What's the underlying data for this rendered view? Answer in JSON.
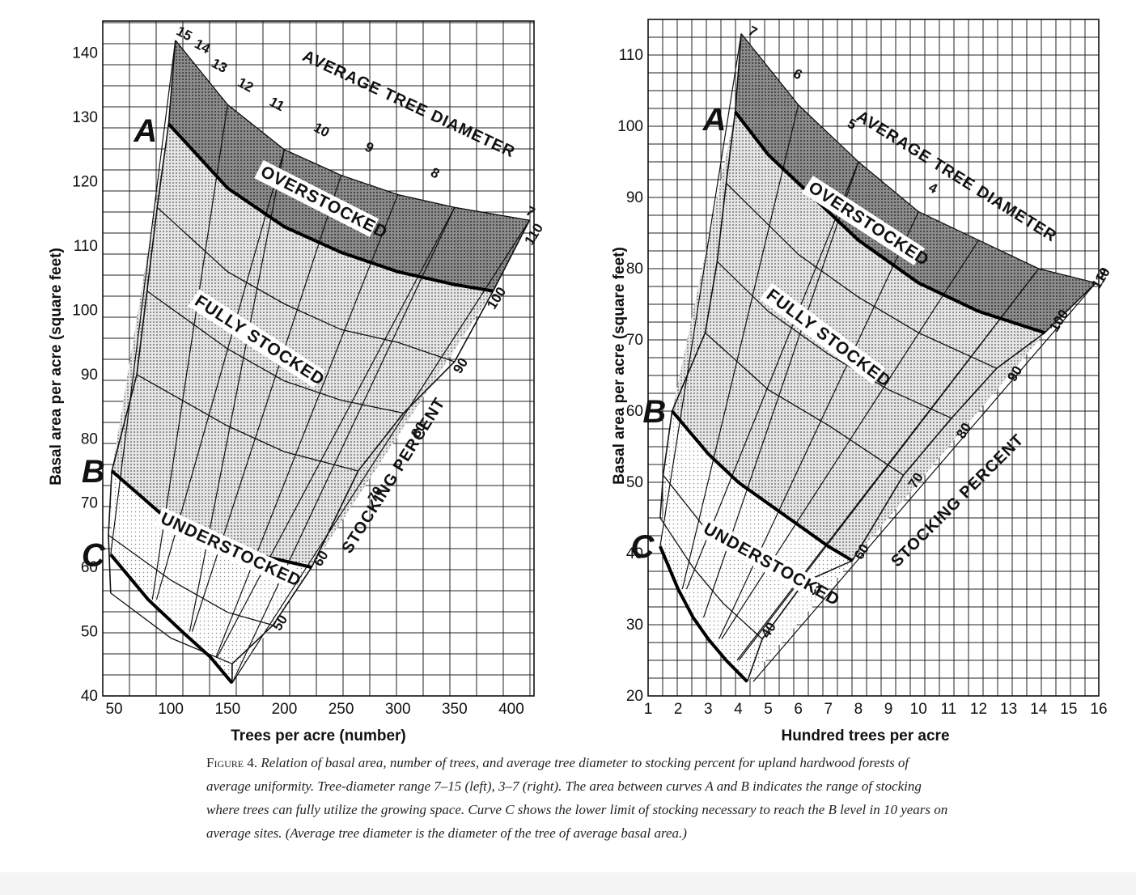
{
  "chart_data": [
    {
      "type": "line",
      "panel": "left",
      "xlabel": "Trees per acre (number)",
      "ylabel": "Basal area per acre (square feet)",
      "xlim": [
        40,
        420
      ],
      "ylim": [
        40,
        145
      ],
      "x_ticks": [
        50,
        100,
        150,
        200,
        250,
        300,
        350,
        400
      ],
      "y_ticks": [
        40,
        50,
        60,
        70,
        80,
        90,
        100,
        110,
        120,
        130,
        140
      ],
      "grid": true,
      "zones": [
        "OVERSTOCKED",
        "FULLY STOCKED",
        "UNDERSTOCKED"
      ],
      "diameter_title": "AVERAGE TREE DIAMETER",
      "stocking_title": "STOCKING PERCENT",
      "curves": [
        {
          "name": "A",
          "x": [
            98,
            150,
            200,
            250,
            300,
            350,
            384
          ],
          "y": [
            129,
            119,
            113,
            109,
            106,
            104,
            103
          ]
        },
        {
          "name": "B",
          "x": [
            48,
            100,
            150,
            200,
            224
          ],
          "y": [
            75,
            67,
            63,
            61,
            60
          ]
        },
        {
          "name": "C",
          "x": [
            47,
            80,
            110,
            135,
            154
          ],
          "y": [
            62,
            55,
            50,
            46,
            42
          ]
        }
      ],
      "stocking_lines": [
        {
          "label": "110",
          "x": [
            104,
            150,
            200,
            250,
            300,
            350,
            416
          ],
          "y": [
            142,
            132,
            125,
            121,
            118,
            116,
            114
          ]
        },
        {
          "label": "100",
          "x": [
            98,
            150,
            200,
            250,
            300,
            350,
            384
          ],
          "y": [
            129,
            119,
            113,
            109,
            106,
            104,
            103
          ]
        },
        {
          "label": "90",
          "x": [
            88,
            150,
            200,
            250,
            300,
            350
          ],
          "y": [
            116,
            106,
            101,
            97,
            95,
            92
          ]
        },
        {
          "label": "80",
          "x": [
            79,
            150,
            200,
            250,
            305
          ],
          "y": [
            103,
            94,
            89,
            86,
            84
          ]
        },
        {
          "label": "70",
          "x": [
            70,
            150,
            200,
            265
          ],
          "y": [
            90,
            82,
            78,
            75
          ]
        },
        {
          "label": "60",
          "x": [
            48,
            100,
            150,
            200,
            224
          ],
          "y": [
            75,
            67,
            63,
            61,
            60
          ]
        },
        {
          "label": "50",
          "x": [
            45,
            100,
            150,
            190
          ],
          "y": [
            65,
            58,
            53,
            51
          ]
        },
        {
          "label": "40",
          "x": [
            47,
            100,
            154
          ],
          "y": [
            56,
            49,
            45
          ]
        }
      ],
      "stocking_labels": [
        {
          "text": "110",
          "x": 418,
          "y": 110
        },
        {
          "text": "100",
          "x": 385,
          "y": 100
        },
        {
          "text": "90",
          "x": 355,
          "y": 90
        },
        {
          "text": "80",
          "x": 318,
          "y": 80
        },
        {
          "text": "70",
          "x": 280,
          "y": 70
        },
        {
          "text": "60",
          "x": 232,
          "y": 60
        },
        {
          "text": "50",
          "x": 196,
          "y": 50
        }
      ],
      "diameter_labels": [
        {
          "text": "15",
          "x": 104,
          "y": 143
        },
        {
          "text": "14",
          "x": 120,
          "y": 141
        },
        {
          "text": "13",
          "x": 135,
          "y": 138
        },
        {
          "text": "12",
          "x": 158,
          "y": 135
        },
        {
          "text": "11",
          "x": 186,
          "y": 132
        },
        {
          "text": "10",
          "x": 225,
          "y": 128
        },
        {
          "text": "9",
          "x": 270,
          "y": 125
        },
        {
          "text": "8",
          "x": 328,
          "y": 121
        },
        {
          "text": "7",
          "x": 412,
          "y": 115
        }
      ],
      "curve_labels": [
        {
          "text": "A",
          "x": 88,
          "y": 128
        },
        {
          "text": "B",
          "x": 42,
          "y": 75
        },
        {
          "text": "C",
          "x": 42,
          "y": 62
        }
      ]
    },
    {
      "type": "line",
      "panel": "right",
      "xlabel": "Hundred trees per acre",
      "ylabel": "Basal area per acre (square feet)",
      "xlim": [
        1,
        16
      ],
      "ylim": [
        20,
        115
      ],
      "x_ticks": [
        1,
        2,
        3,
        4,
        5,
        6,
        7,
        8,
        9,
        10,
        11,
        12,
        13,
        14,
        15,
        16
      ],
      "y_ticks": [
        20,
        30,
        40,
        50,
        60,
        70,
        80,
        90,
        100,
        110
      ],
      "grid": true,
      "zones": [
        "OVERSTOCKED",
        "FULLY STOCKED",
        "UNDERSTOCKED"
      ],
      "diameter_title": "AVERAGE TREE DIAMETER",
      "stocking_title": "STOCKING PERCENT",
      "curves": [
        {
          "name": "A",
          "x": [
            3.9,
            5,
            6,
            8,
            10,
            12,
            14.2
          ],
          "y": [
            102,
            96,
            92,
            84,
            78,
            74,
            71
          ]
        },
        {
          "name": "B",
          "x": [
            1.8,
            3,
            4,
            5,
            6,
            7,
            7.8
          ],
          "y": [
            60,
            54,
            50,
            47,
            44,
            41,
            39
          ]
        },
        {
          "name": "C",
          "x": [
            1.4,
            2,
            2.5,
            3,
            3.6,
            4.3
          ],
          "y": [
            41,
            35,
            31,
            28,
            25,
            22
          ]
        }
      ],
      "stocking_lines": [
        {
          "label": "110",
          "x": [
            4.1,
            6,
            8,
            10,
            12,
            14,
            15.9
          ],
          "y": [
            113,
            103,
            95,
            88,
            84,
            80,
            78
          ]
        },
        {
          "label": "100",
          "x": [
            3.9,
            5,
            6,
            8,
            10,
            12,
            14.2
          ],
          "y": [
            102,
            96,
            92,
            84,
            78,
            74,
            71
          ]
        },
        {
          "label": "90",
          "x": [
            3.6,
            6,
            8,
            10,
            12.6
          ],
          "y": [
            92,
            82,
            76,
            71,
            66
          ]
        },
        {
          "label": "80",
          "x": [
            3.3,
            5,
            7,
            9,
            11.1
          ],
          "y": [
            81,
            74,
            68,
            63,
            59
          ]
        },
        {
          "label": "70",
          "x": [
            2.9,
            5,
            7,
            9.5
          ],
          "y": [
            71,
            63,
            58,
            51
          ]
        },
        {
          "label": "60",
          "x": [
            1.8,
            3,
            4,
            5,
            6,
            7,
            7.8
          ],
          "y": [
            60,
            54,
            50,
            47,
            44,
            41,
            39
          ]
        },
        {
          "label": "50",
          "x": [
            1.5,
            3,
            4.5,
            6.2
          ],
          "y": [
            51,
            43,
            39,
            36
          ]
        },
        {
          "label": "40",
          "x": [
            1.4,
            2.5,
            3.5,
            4.8
          ],
          "y": [
            45,
            38,
            33,
            28
          ]
        }
      ],
      "stocking_labels": [
        {
          "text": "110",
          "x": 16,
          "y": 77
        },
        {
          "text": "100",
          "x": 14.6,
          "y": 71
        },
        {
          "text": "90",
          "x": 13.2,
          "y": 64
        },
        {
          "text": "80",
          "x": 11.5,
          "y": 56
        },
        {
          "text": "70",
          "x": 9.9,
          "y": 49
        },
        {
          "text": "60",
          "x": 8.1,
          "y": 39
        },
        {
          "text": "50",
          "x": 6.5,
          "y": 34
        },
        {
          "text": "40",
          "x": 5,
          "y": 28
        }
      ],
      "diameter_labels": [
        {
          "text": "7",
          "x": 4.3,
          "y": 113
        },
        {
          "text": "6",
          "x": 5.8,
          "y": 107
        },
        {
          "text": "5",
          "x": 7.6,
          "y": 100
        },
        {
          "text": "4",
          "x": 10.3,
          "y": 91
        },
        {
          "text": "3",
          "x": 15.9,
          "y": 79
        }
      ],
      "curve_labels": [
        {
          "text": "A",
          "x": 3.6,
          "y": 101
        },
        {
          "text": "B",
          "x": 1.6,
          "y": 60
        },
        {
          "text": "C",
          "x": 1.2,
          "y": 41
        }
      ]
    }
  ],
  "caption": {
    "lead": "Figure 4.",
    "body": "Relation of basal area, number of trees, and average tree diameter to stocking percent for upland hardwood forests of average uniformity. Tree-diameter range 7–15 (left), 3–7 (right). The area between curves A and B indicates the range of stocking where trees can fully utilize the growing space. Curve C shows the lower limit of stocking necessary to reach the B level in 10 years on average sites. (Average tree diameter is the diameter of the tree of average basal area.)"
  }
}
